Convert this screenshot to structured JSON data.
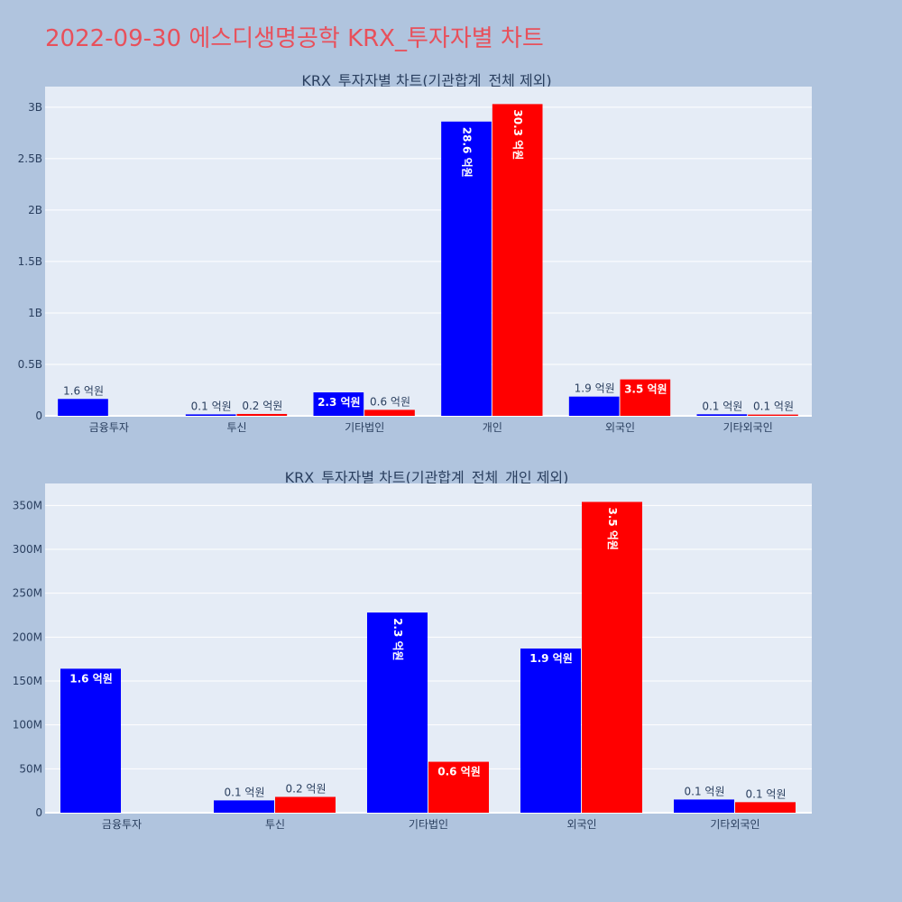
{
  "title": "2022-09-30 에스디생명공학 KRX_투자자별 차트",
  "colors": {
    "background": "#b0c4de",
    "plot_bg": "#e5ecf6",
    "title": "#e8505b",
    "series_a": "#0000ff",
    "series_b": "#ff0000"
  },
  "chart_data": [
    {
      "type": "bar",
      "title": "KRX_투자자별 차트(기관합계_전체 제외)",
      "categories": [
        "금융투자",
        "투신",
        "기타법인",
        "개인",
        "외국인",
        "기타외국인"
      ],
      "ylim": [
        0,
        3200000000
      ],
      "yticks": [
        0,
        500000000,
        1000000000,
        1500000000,
        2000000000,
        2500000000,
        3000000000
      ],
      "ytick_labels": [
        "0",
        "0.5B",
        "1B",
        "1.5B",
        "2B",
        "2.5B",
        "3B"
      ],
      "series": [
        {
          "color": "#0000ff",
          "values": [
            164000000,
            14000000,
            228000000,
            2860000000,
            187000000,
            15000000
          ],
          "labels": [
            "1.6 억원",
            "0.1 억원",
            "2.3 억원",
            "28.6 억원",
            "1.9 억원",
            "0.1 억원"
          ]
        },
        {
          "color": "#ff0000",
          "values": [
            0,
            18000000,
            58000000,
            3030000000,
            354000000,
            12000000
          ],
          "labels": [
            "",
            "0.2 억원",
            "0.6 억원",
            "30.3 억원",
            "3.5 억원",
            "0.1 억원"
          ]
        }
      ]
    },
    {
      "type": "bar",
      "title": "KRX_투자자별 차트(기관합계_전체_개인 제외)",
      "categories": [
        "금융투자",
        "투신",
        "기타법인",
        "외국인",
        "기타외국인"
      ],
      "ylim": [
        0,
        375000000
      ],
      "yticks": [
        0,
        50000000,
        100000000,
        150000000,
        200000000,
        250000000,
        300000000,
        350000000
      ],
      "ytick_labels": [
        "0",
        "50M",
        "100M",
        "150M",
        "200M",
        "250M",
        "300M",
        "350M"
      ],
      "series": [
        {
          "color": "#0000ff",
          "values": [
            164000000,
            14000000,
            228000000,
            187000000,
            15000000
          ],
          "labels": [
            "1.6 억원",
            "0.1 억원",
            "2.3 억원",
            "1.9 억원",
            "0.1 억원"
          ]
        },
        {
          "color": "#ff0000",
          "values": [
            0,
            18000000,
            58000000,
            354000000,
            12000000
          ],
          "labels": [
            "",
            "0.2 억원",
            "0.6 억원",
            "3.5 억원",
            "0.1 억원"
          ]
        }
      ]
    }
  ]
}
